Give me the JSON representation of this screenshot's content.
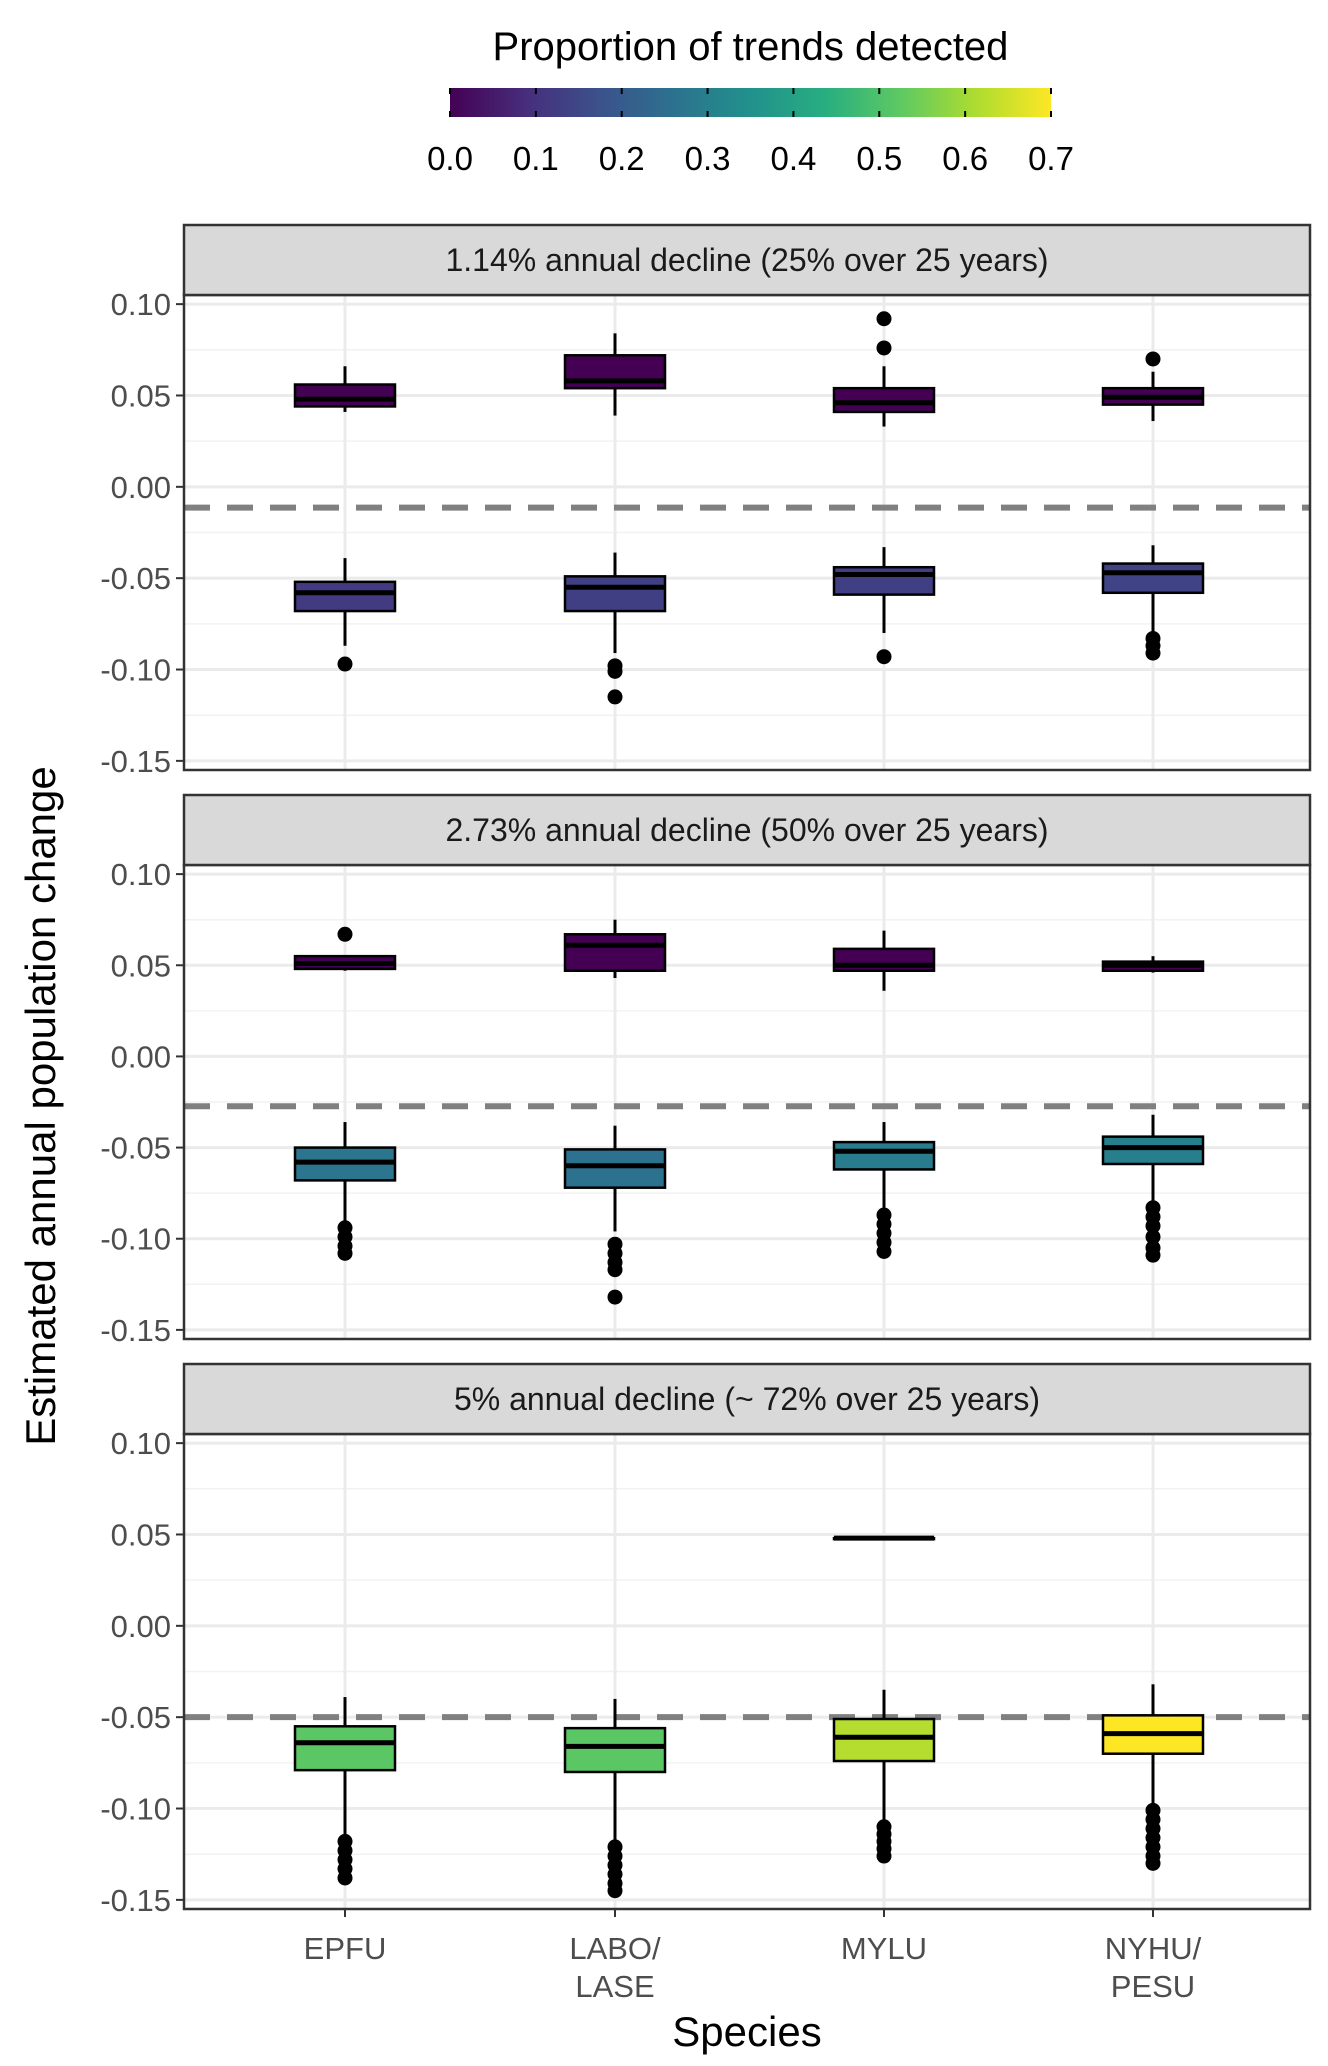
{
  "chart_data": {
    "type": "boxplot",
    "xlabel": "Species",
    "ylabel": "Estimated annual population change",
    "categories": [
      [
        "EPFU"
      ],
      [
        "LABO/",
        "LASE"
      ],
      [
        "MYLU"
      ],
      [
        "NYHU/",
        "PESU"
      ]
    ],
    "ylim": [
      -0.155,
      0.105
    ],
    "yticks": [
      0.1,
      0.05,
      0.0,
      -0.05,
      -0.1,
      -0.15
    ],
    "ytick_labels": [
      "0.10",
      "0.05",
      "0.00",
      "-0.05",
      "-0.10",
      "-0.15"
    ],
    "grid": true,
    "legend": {
      "title": "Proportion of trends detected",
      "position": "top",
      "range": [
        0,
        0.7
      ],
      "ticks": [
        "0.0",
        "0.1",
        "0.2",
        "0.3",
        "0.4",
        "0.5",
        "0.6",
        "0.7"
      ],
      "colormap": [
        "#440154",
        "#472d7b",
        "#3b528b",
        "#2c728e",
        "#21918c",
        "#28ae80",
        "#5ec962",
        "#addc30",
        "#fde725"
      ]
    },
    "reference_line_color": "#808080",
    "panels": [
      {
        "strip": "1.14% annual decline (25% over 25 years)",
        "true_change": -0.0114,
        "boxes": [
          {
            "category": 0,
            "prop": 0.0,
            "whisker_low": 0.041,
            "q1": 0.044,
            "median": 0.048,
            "q3": 0.056,
            "whisker_high": 0.066,
            "outliers": []
          },
          {
            "category": 1,
            "prop": 0.0,
            "whisker_low": 0.039,
            "q1": 0.054,
            "median": 0.058,
            "q3": 0.072,
            "whisker_high": 0.084,
            "outliers": []
          },
          {
            "category": 2,
            "prop": 0.0,
            "whisker_low": 0.033,
            "q1": 0.041,
            "median": 0.046,
            "q3": 0.054,
            "whisker_high": 0.066,
            "outliers": [
              0.076,
              0.092
            ]
          },
          {
            "category": 3,
            "prop": 0.0,
            "whisker_low": 0.036,
            "q1": 0.045,
            "median": 0.049,
            "q3": 0.054,
            "whisker_high": 0.063,
            "outliers": [
              0.07
            ]
          },
          {
            "category": 0,
            "prop": 0.12,
            "whisker_low": -0.087,
            "q1": -0.068,
            "median": -0.058,
            "q3": -0.052,
            "whisker_high": -0.039,
            "outliers": [
              -0.097
            ]
          },
          {
            "category": 1,
            "prop": 0.13,
            "whisker_low": -0.091,
            "q1": -0.068,
            "median": -0.055,
            "q3": -0.049,
            "whisker_high": -0.036,
            "outliers": [
              -0.098,
              -0.101,
              -0.115
            ]
          },
          {
            "category": 2,
            "prop": 0.13,
            "whisker_low": -0.08,
            "q1": -0.059,
            "median": -0.048,
            "q3": -0.044,
            "whisker_high": -0.033,
            "outliers": [
              -0.093
            ]
          },
          {
            "category": 3,
            "prop": 0.14,
            "whisker_low": -0.08,
            "q1": -0.058,
            "median": -0.047,
            "q3": -0.042,
            "whisker_high": -0.032,
            "outliers": [
              -0.083,
              -0.087,
              -0.091
            ]
          }
        ]
      },
      {
        "strip": "2.73% annual decline (50% over 25 years)",
        "true_change": -0.0273,
        "boxes": [
          {
            "category": 0,
            "prop": 0.0,
            "whisker_low": 0.047,
            "q1": 0.048,
            "median": 0.051,
            "q3": 0.055,
            "whisker_high": 0.055,
            "outliers": [
              0.067
            ]
          },
          {
            "category": 1,
            "prop": 0.0,
            "whisker_low": 0.043,
            "q1": 0.047,
            "median": 0.061,
            "q3": 0.067,
            "whisker_high": 0.075,
            "outliers": []
          },
          {
            "category": 2,
            "prop": 0.0,
            "whisker_low": 0.036,
            "q1": 0.047,
            "median": 0.05,
            "q3": 0.059,
            "whisker_high": 0.069,
            "outliers": []
          },
          {
            "category": 3,
            "prop": 0.0,
            "whisker_low": 0.046,
            "q1": 0.047,
            "median": 0.05,
            "q3": 0.052,
            "whisker_high": 0.055,
            "outliers": []
          },
          {
            "category": 0,
            "prop": 0.27,
            "whisker_low": -0.091,
            "q1": -0.068,
            "median": -0.058,
            "q3": -0.05,
            "whisker_high": -0.036,
            "outliers": [
              -0.094,
              -0.099,
              -0.104,
              -0.108
            ]
          },
          {
            "category": 1,
            "prop": 0.26,
            "whisker_low": -0.096,
            "q1": -0.072,
            "median": -0.06,
            "q3": -0.051,
            "whisker_high": -0.038,
            "outliers": [
              -0.103,
              -0.108,
              -0.113,
              -0.117,
              -0.132
            ]
          },
          {
            "category": 2,
            "prop": 0.29,
            "whisker_low": -0.083,
            "q1": -0.062,
            "median": -0.052,
            "q3": -0.047,
            "whisker_high": -0.036,
            "outliers": [
              -0.087,
              -0.092,
              -0.097,
              -0.102,
              -0.107
            ]
          },
          {
            "category": 3,
            "prop": 0.3,
            "whisker_low": -0.079,
            "q1": -0.059,
            "median": -0.05,
            "q3": -0.044,
            "whisker_high": -0.032,
            "outliers": [
              -0.083,
              -0.088,
              -0.093,
              -0.099,
              -0.105,
              -0.109
            ]
          }
        ]
      },
      {
        "strip": "5% annual decline (~ 72% over 25 years)",
        "true_change": -0.05,
        "boxes": [
          {
            "category": 2,
            "prop": 0.0,
            "whisker_low": 0.048,
            "q1": 0.048,
            "median": 0.048,
            "q3": 0.048,
            "whisker_high": 0.048,
            "outliers": []
          },
          {
            "category": 0,
            "prop": 0.52,
            "whisker_low": -0.115,
            "q1": -0.079,
            "median": -0.064,
            "q3": -0.055,
            "whisker_high": -0.039,
            "outliers": [
              -0.118,
              -0.123,
              -0.128,
              -0.133,
              -0.138
            ]
          },
          {
            "category": 1,
            "prop": 0.52,
            "whisker_low": -0.117,
            "q1": -0.08,
            "median": -0.066,
            "q3": -0.056,
            "whisker_high": -0.04,
            "outliers": [
              -0.121,
              -0.126,
              -0.131,
              -0.136,
              -0.141,
              -0.145
            ]
          },
          {
            "category": 2,
            "prop": 0.62,
            "whisker_low": -0.108,
            "q1": -0.074,
            "median": -0.061,
            "q3": -0.051,
            "whisker_high": -0.035,
            "outliers": [
              -0.11,
              -0.114,
              -0.118,
              -0.122,
              -0.126
            ]
          },
          {
            "category": 3,
            "prop": 0.7,
            "whisker_low": -0.099,
            "q1": -0.07,
            "median": -0.059,
            "q3": -0.049,
            "whisker_high": -0.032,
            "outliers": [
              -0.101,
              -0.106,
              -0.111,
              -0.116,
              -0.121,
              -0.126,
              -0.13
            ]
          }
        ]
      }
    ]
  }
}
